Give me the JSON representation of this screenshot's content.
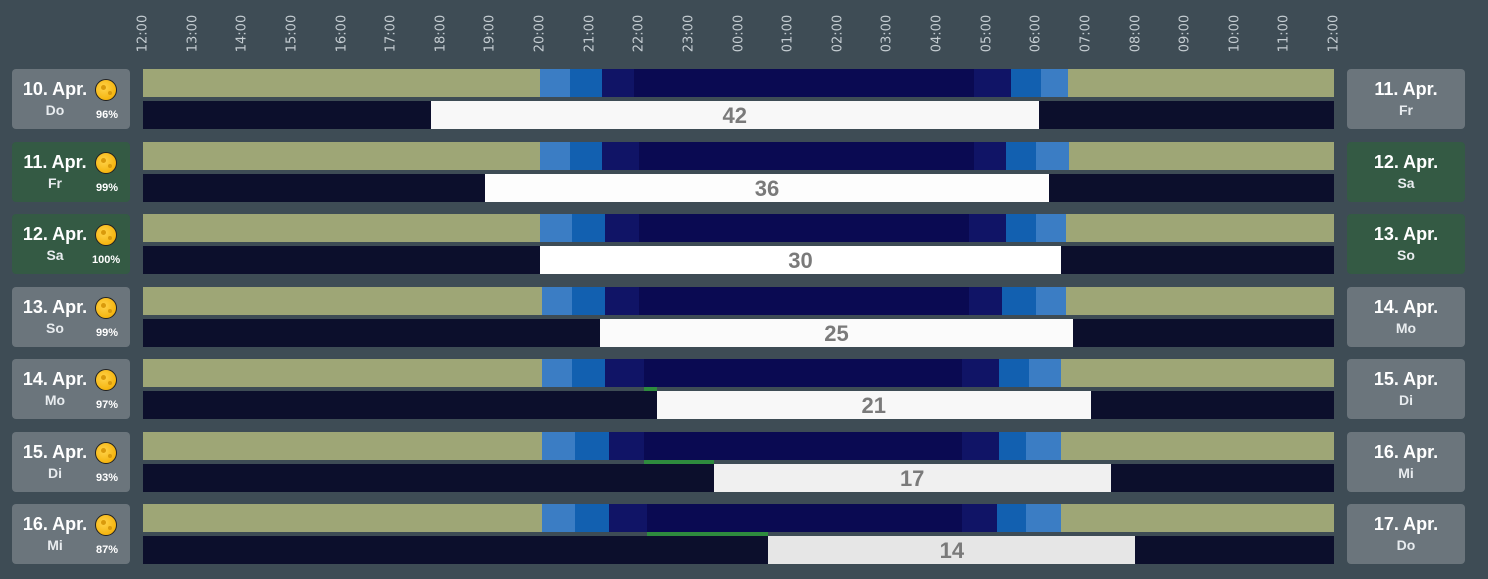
{
  "axis": {
    "ticks": [
      "12:00",
      "13:00",
      "14:00",
      "15:00",
      "16:00",
      "17:00",
      "18:00",
      "19:00",
      "20:00",
      "21:00",
      "22:00",
      "23:00",
      "00:00",
      "01:00",
      "02:00",
      "03:00",
      "04:00",
      "05:00",
      "06:00",
      "07:00",
      "08:00",
      "09:00",
      "10:00",
      "11:00",
      "12:00"
    ]
  },
  "colors": {
    "day": "#9ea676",
    "civil": "#3b7dc4",
    "nautical": "#1260b0",
    "astronomical": "#101466",
    "night": "#0a0a52",
    "moon_free": "#f8f8f8",
    "card_gray": "#6b757c",
    "card_green": "#345a44"
  },
  "chart_data": {
    "type": "table",
    "x_range_hours": [
      12,
      36
    ],
    "rows": [
      {
        "date": "10. Apr.",
        "weekday": "Do",
        "moon": "96%",
        "next_date": "11. Apr.",
        "next_weekday": "Fr",
        "highlight": false,
        "twilight": [
          20.0,
          20.6,
          21.25,
          21.9,
          28.75,
          29.5,
          30.1,
          30.65
        ],
        "dark_window": [
          17.8,
          30.05
        ],
        "dark_value": "42",
        "dark_color": "#f8f8f8",
        "green": null
      },
      {
        "date": "11. Apr.",
        "weekday": "Fr",
        "moon": "99%",
        "next_date": "12. Apr.",
        "next_weekday": "Sa",
        "highlight": true,
        "twilight": [
          20.0,
          20.6,
          21.25,
          22.0,
          28.75,
          29.4,
          30.0,
          30.65
        ],
        "dark_window": [
          18.9,
          30.25
        ],
        "dark_value": "36",
        "dark_color": "#fdfdfd",
        "green": null
      },
      {
        "date": "12. Apr.",
        "weekday": "Sa",
        "moon": "100%",
        "next_date": "13. Apr.",
        "next_weekday": "So",
        "highlight": true,
        "twilight": [
          20.0,
          20.65,
          21.3,
          22.0,
          28.65,
          29.4,
          30.0,
          30.6
        ],
        "dark_window": [
          20.0,
          30.5
        ],
        "dark_value": "30",
        "dark_color": "#ffffff",
        "green": null
      },
      {
        "date": "13. Apr.",
        "weekday": "So",
        "moon": "99%",
        "next_date": "14. Apr.",
        "next_weekday": "Mo",
        "highlight": false,
        "twilight": [
          20.05,
          20.65,
          21.3,
          22.0,
          28.65,
          29.3,
          30.0,
          30.6
        ],
        "dark_window": [
          21.2,
          30.75
        ],
        "dark_value": "25",
        "dark_color": "#fbfbfb",
        "green": null
      },
      {
        "date": "14. Apr.",
        "weekday": "Mo",
        "moon": "97%",
        "next_date": "15. Apr.",
        "next_weekday": "Di",
        "highlight": false,
        "twilight": [
          20.05,
          20.65,
          21.3,
          22.1,
          28.5,
          29.25,
          29.85,
          30.5
        ],
        "dark_window": [
          22.35,
          31.1
        ],
        "dark_value": "21",
        "dark_color": "#f8f8f8",
        "green": [
          22.1,
          22.35
        ]
      },
      {
        "date": "15. Apr.",
        "weekday": "Di",
        "moon": "93%",
        "next_date": "16. Apr.",
        "next_weekday": "Mi",
        "highlight": false,
        "twilight": [
          20.05,
          20.7,
          21.4,
          22.1,
          28.5,
          29.25,
          29.8,
          30.5
        ],
        "dark_window": [
          23.5,
          31.5
        ],
        "dark_value": "17",
        "dark_color": "#f0f0f0",
        "green": [
          22.1,
          23.5
        ]
      },
      {
        "date": "16. Apr.",
        "weekday": "Mi",
        "moon": "87%",
        "next_date": "17. Apr.",
        "next_weekday": "Do",
        "highlight": false,
        "twilight": [
          20.05,
          20.7,
          21.4,
          22.15,
          28.5,
          29.2,
          29.8,
          30.5
        ],
        "dark_window": [
          24.6,
          32.0
        ],
        "dark_value": "14",
        "dark_color": "#e6e6e6",
        "green": [
          22.15,
          24.6
        ]
      }
    ]
  }
}
